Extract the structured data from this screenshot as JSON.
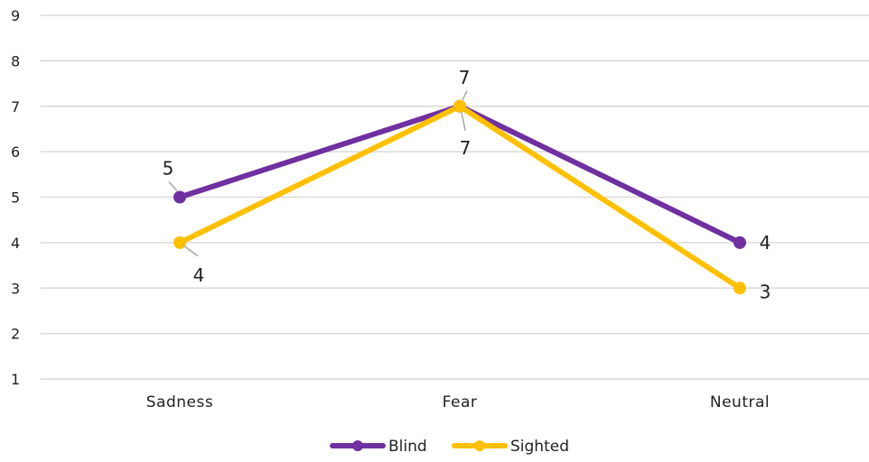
{
  "chart_data": {
    "type": "line",
    "categories": [
      "Sadness",
      "Fear",
      "Neutral"
    ],
    "series": [
      {
        "name": "Blind",
        "values": [
          5,
          7,
          4
        ],
        "color": "#7030A0"
      },
      {
        "name": "Sighted",
        "values": [
          4,
          7,
          3
        ],
        "color": "#FFC000"
      }
    ],
    "y_ticks": [
      1,
      2,
      3,
      4,
      5,
      6,
      7,
      8,
      9
    ],
    "ylim": [
      1,
      9
    ],
    "grid": true,
    "legend_position": "bottom",
    "data_labels": true,
    "label_color": "#222222",
    "grid_color": "#d9d9d9",
    "leader_color": "#a6a6a6"
  }
}
